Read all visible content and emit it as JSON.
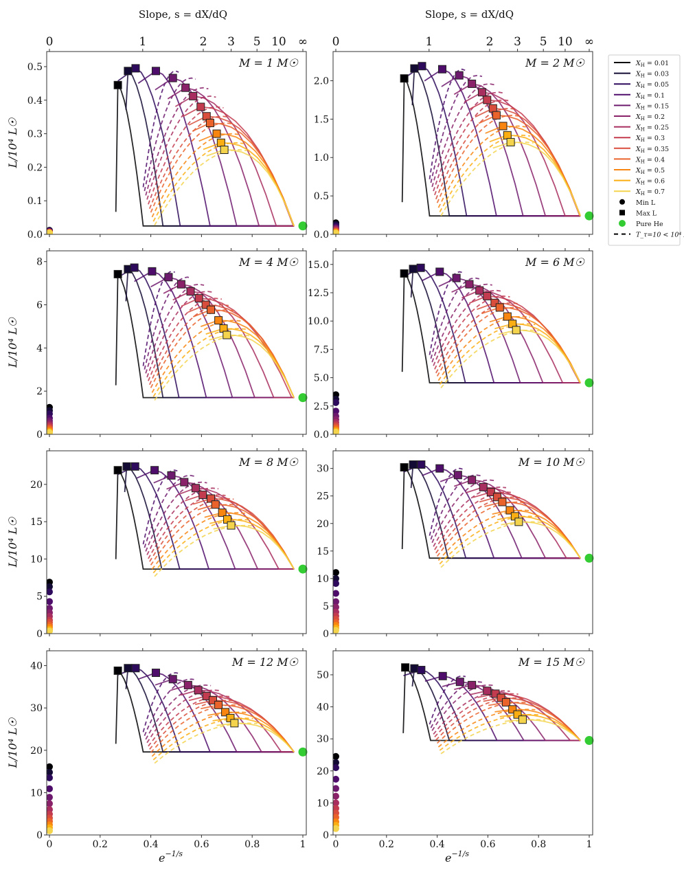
{
  "chart_data": {
    "type": "line",
    "figure_layout": "4x2 grid of panels sharing x axis",
    "top_axis": {
      "title_prefix": "Slope, ",
      "title_var": "s",
      "title_eq": " = dX/dQ",
      "tick_labels": [
        "0",
        "1",
        "2",
        "3",
        "5",
        "10",
        "∞"
      ],
      "tick_slopes": [
        0,
        1,
        2,
        3,
        5,
        10,
        "inf"
      ],
      "tick_positions": [
        0,
        0.368,
        0.607,
        0.717,
        0.819,
        0.905,
        1.0
      ]
    },
    "xlabel": "e^(−1/s)",
    "xlabel_base": "e",
    "xlabel_exp": "−1/s",
    "ylabel": "L/10⁴ L☉",
    "xlim": [
      0,
      1
    ],
    "xticks": [
      0,
      0.2,
      0.4,
      0.6,
      0.8,
      1
    ],
    "xtick_labels": [
      "0",
      "0.2",
      "0.4",
      "0.6",
      "0.8",
      "1"
    ],
    "xH_values": [
      0.01,
      0.03,
      0.05,
      0.1,
      0.15,
      0.2,
      0.25,
      0.3,
      0.35,
      0.4,
      0.5,
      0.6,
      0.7
    ],
    "colors": [
      "#000004",
      "#140b34",
      "#2d0a5b",
      "#4f0d6b",
      "#6d1a6e",
      "#8a226a",
      "#a82e5f",
      "#c33b4f",
      "#d84d3b",
      "#ea632a",
      "#f8850f",
      "#fbae12",
      "#f3d44c"
    ],
    "pure_he_color": "#33cc33",
    "legend": {
      "placement": "right",
      "entries": [
        {
          "label": "X_H = 0.01",
          "sub": "H",
          "val": "0.01"
        },
        {
          "label": "X_H = 0.03",
          "sub": "H",
          "val": "0.03"
        },
        {
          "label": "X_H = 0.05",
          "sub": "H",
          "val": "0.05"
        },
        {
          "label": "X_H = 0.1",
          "sub": "H",
          "val": "0.1"
        },
        {
          "label": "X_H = 0.15",
          "sub": "H",
          "val": "0.15"
        },
        {
          "label": "X_H = 0.2",
          "sub": "H",
          "val": "0.2"
        },
        {
          "label": "X_H = 0.25",
          "sub": "H",
          "val": "0.25"
        },
        {
          "label": "X_H = 0.3",
          "sub": "H",
          "val": "0.3"
        },
        {
          "label": "X_H = 0.35",
          "sub": "H",
          "val": "0.35"
        },
        {
          "label": "X_H = 0.4",
          "sub": "H",
          "val": "0.4"
        },
        {
          "label": "X_H = 0.5",
          "sub": "H",
          "val": "0.5"
        },
        {
          "label": "X_H = 0.6",
          "sub": "H",
          "val": "0.6"
        },
        {
          "label": "X_H = 0.7",
          "sub": "H",
          "val": "0.7"
        }
      ],
      "min_label": "Min L",
      "max_label": "Max L",
      "he_label": "Pure He",
      "dash_label": "T_τ=10 < 10⁴ K"
    },
    "panels": [
      {
        "mass": "1",
        "label": "M = 1 M☉",
        "ylim": [
          0,
          0.545
        ],
        "yticks": [
          0,
          0.1,
          0.2,
          0.3,
          0.4,
          0.5
        ],
        "ytick_labels": [
          "0.0",
          "0.1",
          "0.2",
          "0.3",
          "0.4",
          "0.5"
        ],
        "base_L": 0.025,
        "pure_he_L": 0.025,
        "max_L": [
          [
            0.27,
            0.445
          ],
          [
            0.31,
            0.487
          ],
          [
            0.34,
            0.495
          ],
          [
            0.42,
            0.487
          ],
          [
            0.487,
            0.466
          ],
          [
            0.537,
            0.437
          ],
          [
            0.567,
            0.412
          ],
          [
            0.597,
            0.38
          ],
          [
            0.62,
            0.352
          ],
          [
            0.634,
            0.332
          ],
          [
            0.66,
            0.3
          ],
          [
            0.677,
            0.273
          ],
          [
            0.69,
            0.252
          ]
        ],
        "min_L": [
          0.012,
          0.011,
          0.01,
          0.009,
          0.008,
          0.007,
          0.007,
          0.006,
          0.006,
          0.005,
          0.005,
          0.004,
          0.004
        ]
      },
      {
        "mass": "2",
        "label": "M = 2 M☉",
        "ylim": [
          0,
          2.38
        ],
        "yticks": [
          0,
          0.5,
          1.0,
          1.5,
          2.0
        ],
        "ytick_labels": [
          "0.0",
          "0.5",
          "1.0",
          "1.5",
          "2.0"
        ],
        "base_L": 0.24,
        "pure_he_L": 0.24,
        "max_L": [
          [
            0.27,
            2.03
          ],
          [
            0.31,
            2.16
          ],
          [
            0.34,
            2.19
          ],
          [
            0.42,
            2.15
          ],
          [
            0.487,
            2.07
          ],
          [
            0.537,
            1.96
          ],
          [
            0.577,
            1.85
          ],
          [
            0.597,
            1.75
          ],
          [
            0.62,
            1.64
          ],
          [
            0.634,
            1.55
          ],
          [
            0.66,
            1.41
          ],
          [
            0.677,
            1.29
          ],
          [
            0.69,
            1.2
          ]
        ],
        "min_L": [
          0.15,
          0.13,
          0.11,
          0.09,
          0.08,
          0.07,
          0.06,
          0.05,
          0.04,
          0.035,
          0.03,
          0.02,
          0.015
        ]
      },
      {
        "mass": "4",
        "label": "M = 4 M☉",
        "ylim": [
          0,
          8.5
        ],
        "yticks": [
          0,
          2,
          4,
          6,
          8
        ],
        "ytick_labels": [
          "0",
          "2",
          "4",
          "6",
          "8"
        ],
        "base_L": 1.7,
        "pure_he_L": 1.7,
        "max_L": [
          [
            0.27,
            7.42
          ],
          [
            0.31,
            7.65
          ],
          [
            0.335,
            7.72
          ],
          [
            0.405,
            7.55
          ],
          [
            0.47,
            7.28
          ],
          [
            0.52,
            6.95
          ],
          [
            0.557,
            6.62
          ],
          [
            0.59,
            6.3
          ],
          [
            0.617,
            6.0
          ],
          [
            0.637,
            5.77
          ],
          [
            0.667,
            5.28
          ],
          [
            0.687,
            4.9
          ],
          [
            0.7,
            4.6
          ]
        ],
        "min_L": [
          1.25,
          1.1,
          0.95,
          0.75,
          0.62,
          0.52,
          0.44,
          0.37,
          0.3,
          0.25,
          0.18,
          0.12,
          0.07
        ]
      },
      {
        "mass": "6",
        "label": "M = 6 M☉",
        "ylim": [
          0,
          16.2
        ],
        "yticks": [
          0,
          2.5,
          5.0,
          7.5,
          10.0,
          12.5,
          15.0
        ],
        "ytick_labels": [
          "0.0",
          "2.5",
          "5.0",
          "7.5",
          "10.0",
          "12.5",
          "15.0"
        ],
        "base_L": 4.55,
        "pure_he_L": 4.55,
        "max_L": [
          [
            0.27,
            14.2
          ],
          [
            0.305,
            14.6
          ],
          [
            0.335,
            14.7
          ],
          [
            0.41,
            14.35
          ],
          [
            0.476,
            13.8
          ],
          [
            0.527,
            13.25
          ],
          [
            0.567,
            12.7
          ],
          [
            0.597,
            12.2
          ],
          [
            0.627,
            11.6
          ],
          [
            0.647,
            11.2
          ],
          [
            0.677,
            10.4
          ],
          [
            0.697,
            9.75
          ],
          [
            0.712,
            9.2
          ]
        ],
        "min_L": [
          3.5,
          3.1,
          2.8,
          2.05,
          1.6,
          1.3,
          1.05,
          0.85,
          0.7,
          0.55,
          0.4,
          0.28,
          0.18
        ]
      },
      {
        "mass": "8",
        "label": "M = 8 M☉",
        "ylim": [
          0,
          24.5
        ],
        "yticks": [
          0,
          5,
          10,
          15,
          20
        ],
        "ytick_labels": [
          "0",
          "5",
          "10",
          "15",
          "20"
        ],
        "base_L": 8.65,
        "pure_he_L": 8.65,
        "max_L": [
          [
            0.27,
            21.9
          ],
          [
            0.305,
            22.4
          ],
          [
            0.338,
            22.4
          ],
          [
            0.415,
            21.9
          ],
          [
            0.481,
            21.2
          ],
          [
            0.532,
            20.3
          ],
          [
            0.577,
            19.5
          ],
          [
            0.605,
            18.6
          ],
          [
            0.637,
            18.1
          ],
          [
            0.655,
            17.3
          ],
          [
            0.682,
            16.2
          ],
          [
            0.702,
            15.3
          ],
          [
            0.717,
            14.5
          ]
        ],
        "min_L": [
          6.9,
          6.3,
          5.6,
          4.3,
          3.4,
          2.8,
          2.3,
          1.8,
          1.5,
          1.15,
          0.85,
          0.55,
          0.35
        ]
      },
      {
        "mass": "10",
        "label": "M = 10 M☉",
        "ylim": [
          0,
          33.2
        ],
        "yticks": [
          0,
          5,
          10,
          15,
          20,
          25,
          30
        ],
        "ytick_labels": [
          "0",
          "5",
          "10",
          "15",
          "20",
          "25",
          "30"
        ],
        "base_L": 13.7,
        "pure_he_L": 13.7,
        "max_L": [
          [
            0.27,
            30.2
          ],
          [
            0.305,
            30.7
          ],
          [
            0.337,
            30.7
          ],
          [
            0.41,
            30.0
          ],
          [
            0.482,
            28.8
          ],
          [
            0.537,
            27.9
          ],
          [
            0.582,
            26.6
          ],
          [
            0.612,
            25.7
          ],
          [
            0.637,
            24.8
          ],
          [
            0.657,
            23.9
          ],
          [
            0.687,
            22.4
          ],
          [
            0.707,
            21.3
          ],
          [
            0.722,
            20.3
          ]
        ],
        "min_L": [
          11.1,
          10.0,
          9.1,
          7.3,
          5.8,
          4.8,
          3.9,
          3.2,
          2.6,
          2.0,
          1.5,
          1.0,
          0.6
        ]
      },
      {
        "mass": "12",
        "label": "M = 12 M☉",
        "ylim": [
          0,
          43.5
        ],
        "yticks": [
          0,
          10,
          20,
          30,
          40
        ],
        "ytick_labels": [
          "0",
          "10",
          "20",
          "30",
          "40"
        ],
        "base_L": 19.6,
        "pure_he_L": 19.6,
        "max_L": [
          [
            0.27,
            38.8
          ],
          [
            0.31,
            39.4
          ],
          [
            0.34,
            39.4
          ],
          [
            0.42,
            38.3
          ],
          [
            0.487,
            36.8
          ],
          [
            0.547,
            35.4
          ],
          [
            0.587,
            34.2
          ],
          [
            0.62,
            32.8
          ],
          [
            0.645,
            31.8
          ],
          [
            0.667,
            30.7
          ],
          [
            0.694,
            29.0
          ],
          [
            0.714,
            27.6
          ],
          [
            0.73,
            26.4
          ]
        ],
        "min_L": [
          16.1,
          14.8,
          13.5,
          10.9,
          8.9,
          7.4,
          6.0,
          4.9,
          4.0,
          3.2,
          2.4,
          1.7,
          1.0
        ]
      },
      {
        "mass": "15",
        "label": "M = 15 M☉",
        "ylim": [
          0,
          57.5
        ],
        "yticks": [
          0,
          10,
          20,
          30,
          40,
          50
        ],
        "ytick_labels": [
          "0",
          "10",
          "20",
          "30",
          "40",
          "50"
        ],
        "base_L": 29.5,
        "pure_he_L": 29.5,
        "max_L": [
          [
            0.274,
            52.3
          ],
          [
            0.31,
            52.0
          ],
          [
            0.337,
            51.5
          ],
          [
            0.422,
            49.6
          ],
          [
            0.49,
            47.8
          ],
          [
            0.537,
            46.8
          ],
          [
            0.597,
            45.0
          ],
          [
            0.63,
            44.1
          ],
          [
            0.652,
            42.8
          ],
          [
            0.672,
            41.4
          ],
          [
            0.697,
            39.2
          ],
          [
            0.717,
            37.6
          ],
          [
            0.737,
            36.0
          ]
        ],
        "min_L": [
          24.5,
          22.6,
          21.0,
          17.4,
          14.5,
          12.1,
          10.0,
          8.3,
          6.8,
          5.5,
          4.1,
          3.0,
          2.0
        ]
      }
    ]
  }
}
